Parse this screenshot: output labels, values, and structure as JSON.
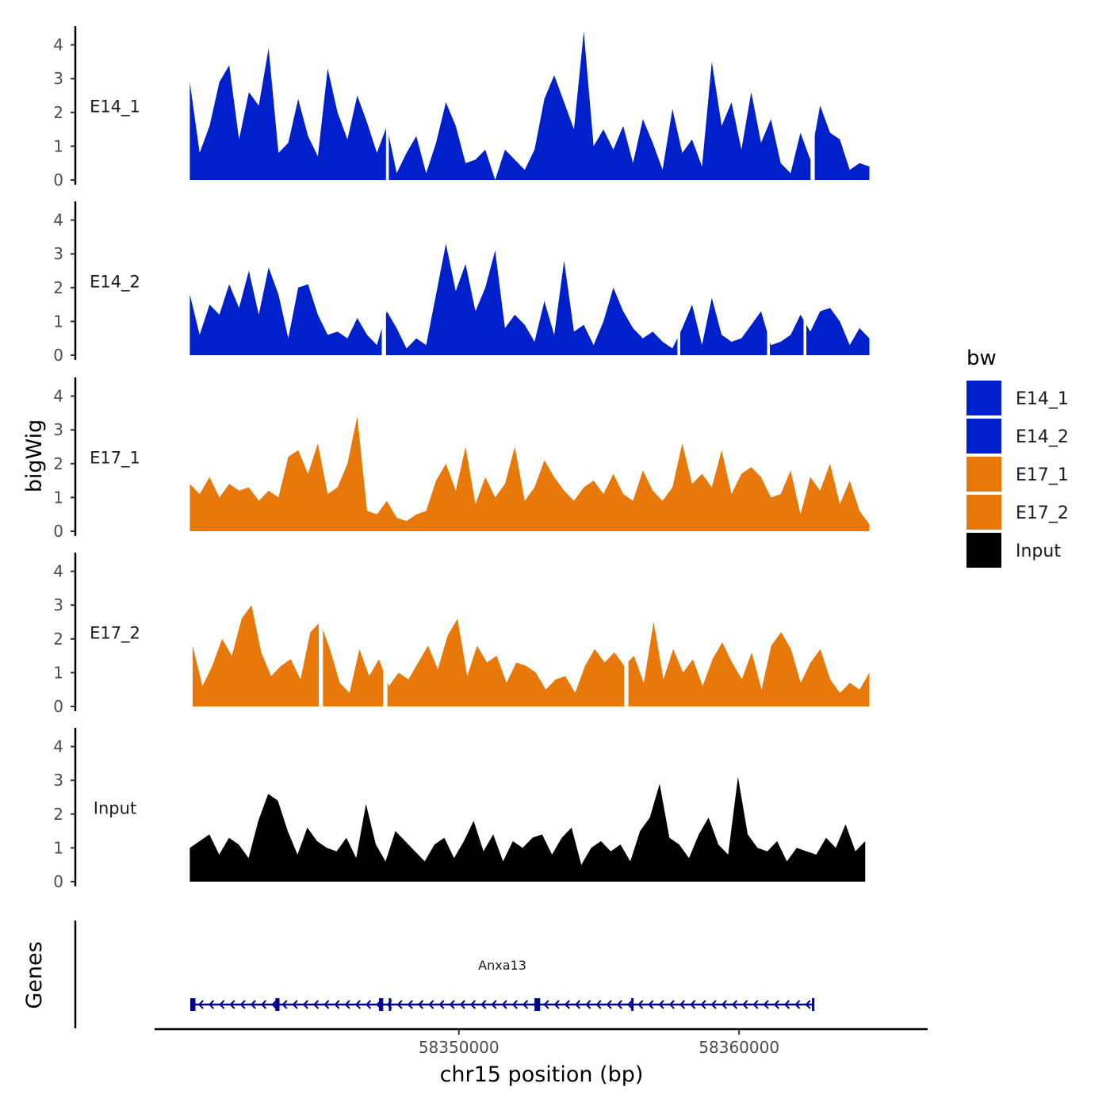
{
  "chart_data": {
    "type": "area",
    "title": "",
    "y_axis_title": "bigWig",
    "x_axis_title": "chr15 position (bp)",
    "genes_panel_title": "Genes",
    "legend_title": "bw",
    "ylim": [
      0,
      4.5
    ],
    "y_ticks": [
      0,
      1,
      2,
      3,
      4
    ],
    "y_tick_labels": [
      "0",
      "1",
      "2",
      "3",
      "4"
    ],
    "xlim": [
      58339200,
      58366700
    ],
    "x_ticks": [
      58350000,
      58360000
    ],
    "x_tick_labels": [
      "58350000",
      "58360000"
    ],
    "colors": {
      "E14_1": "#0020cc",
      "E14_2": "#0020cc",
      "E17_1": "#e8780a",
      "E17_2": "#e8780a",
      "Input": "#000000",
      "gene": "#00008b"
    },
    "tracks": [
      {
        "name": "E14_1",
        "x_start": 58340400,
        "x_end": 58364650,
        "n_points": 70,
        "values": [
          2.9,
          0.8,
          1.6,
          2.9,
          3.4,
          1.2,
          2.6,
          2.2,
          3.9,
          0.8,
          1.1,
          2.4,
          1.3,
          0.7,
          3.3,
          2.0,
          1.2,
          2.5,
          1.7,
          0.8,
          1.6,
          0.2,
          0.8,
          1.3,
          0.2,
          1.1,
          2.3,
          1.6,
          0.5,
          0.6,
          0.9,
          0.0,
          0.9,
          0.6,
          0.3,
          0.9,
          2.4,
          3.1,
          2.3,
          1.5,
          4.4,
          1.0,
          1.5,
          0.9,
          1.6,
          0.5,
          1.8,
          1.1,
          0.3,
          2.1,
          0.8,
          1.2,
          0.4,
          3.5,
          1.6,
          2.3,
          0.9,
          2.6,
          1.1,
          1.8,
          0.5,
          0.2,
          1.4,
          0.6,
          2.2,
          1.4,
          1.2,
          0.3,
          0.5,
          0.4
        ],
        "gaps": [
          [
            58347400,
            58347500
          ],
          [
            58362550,
            58362700
          ]
        ]
      },
      {
        "name": "E14_2",
        "x_start": 58340400,
        "x_end": 58364650,
        "n_points": 70,
        "values": [
          1.8,
          0.6,
          1.5,
          1.2,
          2.1,
          1.4,
          2.5,
          1.2,
          2.6,
          1.8,
          0.5,
          2.0,
          2.1,
          1.2,
          0.6,
          0.7,
          0.5,
          1.1,
          0.6,
          0.3,
          1.3,
          0.8,
          0.2,
          0.5,
          0.3,
          1.8,
          3.3,
          1.9,
          2.7,
          1.3,
          2.0,
          3.1,
          0.8,
          1.2,
          0.9,
          0.4,
          1.6,
          0.6,
          2.8,
          0.7,
          0.9,
          0.3,
          1.0,
          2.0,
          1.3,
          0.8,
          0.5,
          0.7,
          0.4,
          0.2,
          0.8,
          1.5,
          0.3,
          1.7,
          0.6,
          0.4,
          0.5,
          0.9,
          1.3,
          0.3,
          0.4,
          0.6,
          1.2,
          0.7,
          1.3,
          1.4,
          1.0,
          0.3,
          0.8,
          0.5
        ],
        "gaps": [
          [
            58347250,
            58347400
          ],
          [
            58357800,
            58357900
          ],
          [
            58361000,
            58361100
          ],
          [
            58362300,
            58362400
          ]
        ]
      },
      {
        "name": "E17_1",
        "x_start": 58340400,
        "x_end": 58364650,
        "n_points": 70,
        "values": [
          1.4,
          1.1,
          1.6,
          1.0,
          1.4,
          1.2,
          1.3,
          0.9,
          1.2,
          1.0,
          2.2,
          2.4,
          1.7,
          2.6,
          1.1,
          1.3,
          2.0,
          3.4,
          0.6,
          0.5,
          0.9,
          0.4,
          0.3,
          0.5,
          0.6,
          1.5,
          2.0,
          1.2,
          2.5,
          0.8,
          1.6,
          1.0,
          1.4,
          2.5,
          0.9,
          1.3,
          2.1,
          1.6,
          1.2,
          0.9,
          1.3,
          1.5,
          1.1,
          1.7,
          1.1,
          0.9,
          1.8,
          1.2,
          0.9,
          1.3,
          2.6,
          1.4,
          1.7,
          1.3,
          2.4,
          1.1,
          1.7,
          1.9,
          1.6,
          1.0,
          1.1,
          1.8,
          0.5,
          1.6,
          1.2,
          2.0,
          0.8,
          1.5,
          0.6,
          0.2
        ],
        "gaps": []
      },
      {
        "name": "E17_2",
        "x_start": 58340500,
        "x_end": 58364650,
        "n_points": 70,
        "values": [
          1.8,
          0.6,
          1.2,
          2.0,
          1.5,
          2.6,
          3.0,
          1.6,
          0.9,
          1.2,
          1.4,
          0.8,
          2.2,
          2.5,
          1.7,
          0.7,
          0.4,
          1.7,
          0.9,
          1.4,
          0.6,
          1.0,
          0.8,
          1.3,
          1.8,
          1.1,
          2.1,
          2.6,
          0.9,
          1.8,
          1.3,
          1.5,
          0.7,
          1.3,
          1.2,
          1.0,
          0.5,
          0.8,
          0.9,
          0.4,
          1.2,
          1.7,
          1.3,
          1.6,
          1.2,
          1.5,
          0.7,
          2.5,
          0.8,
          1.7,
          1.0,
          1.4,
          0.6,
          1.4,
          1.9,
          1.3,
          0.8,
          1.6,
          0.5,
          1.8,
          2.2,
          1.7,
          0.7,
          1.3,
          1.7,
          0.8,
          0.4,
          0.7,
          0.5,
          1.0
        ],
        "gaps": [
          [
            58345000,
            58345150
          ],
          [
            58347300,
            58347450
          ],
          [
            58355900,
            58356050
          ]
        ]
      },
      {
        "name": "Input",
        "x_start": 58340400,
        "x_end": 58364500,
        "n_points": 70,
        "values": [
          1.0,
          1.2,
          1.4,
          0.8,
          1.3,
          1.1,
          0.7,
          1.8,
          2.6,
          2.4,
          1.5,
          0.8,
          1.6,
          1.2,
          1.0,
          0.9,
          1.3,
          0.7,
          2.3,
          1.1,
          0.6,
          1.5,
          1.2,
          0.9,
          0.6,
          1.1,
          1.3,
          0.7,
          1.2,
          1.8,
          0.9,
          1.4,
          0.6,
          1.2,
          1.0,
          1.3,
          1.4,
          0.8,
          1.3,
          1.6,
          0.5,
          1.0,
          1.2,
          0.9,
          1.1,
          0.6,
          1.5,
          1.9,
          2.9,
          1.3,
          1.1,
          0.7,
          1.4,
          1.9,
          1.1,
          0.8,
          3.1,
          1.4,
          1.0,
          0.9,
          1.2,
          0.6,
          1.0,
          0.9,
          0.8,
          1.3,
          1.0,
          1.7,
          0.9,
          1.2
        ],
        "gaps": []
      }
    ],
    "genes": [
      {
        "name": "Anxa13",
        "strand": "-",
        "start": 58340450,
        "end": 58362650,
        "exons": [
          [
            58340450,
            58340600
          ],
          [
            58343450,
            58343600
          ],
          [
            58347150,
            58347300
          ],
          [
            58347500,
            58347550
          ],
          [
            58352700,
            58352900
          ],
          [
            58356150,
            58356200
          ],
          [
            58362600,
            58362650
          ]
        ]
      }
    ]
  }
}
